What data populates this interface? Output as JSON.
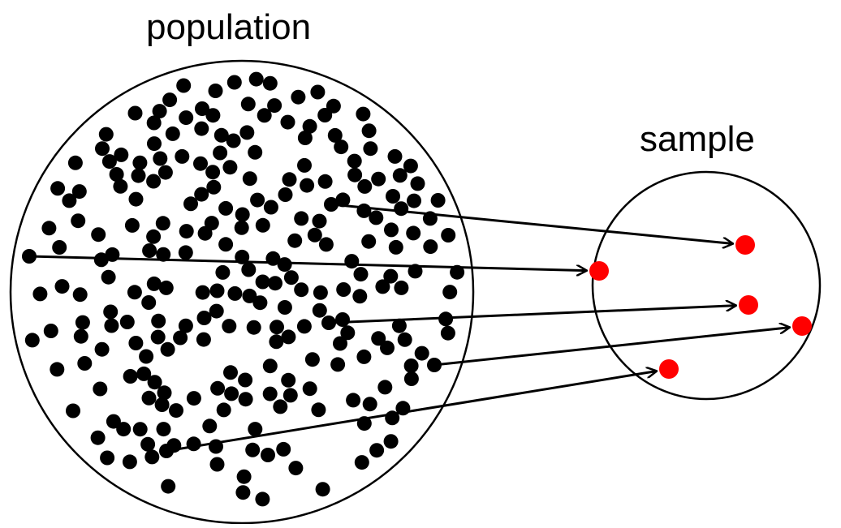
{
  "population_label": "population",
  "sample_label": "sample",
  "colors": {
    "population_dot": "#000000",
    "sample_dot": "#ff0000",
    "outline": "#000000",
    "arrow": "#000000",
    "background": "#ffffff"
  },
  "population": {
    "dot_count": 250,
    "selected_count": 5
  },
  "sample": {
    "dot_count": 5
  }
}
